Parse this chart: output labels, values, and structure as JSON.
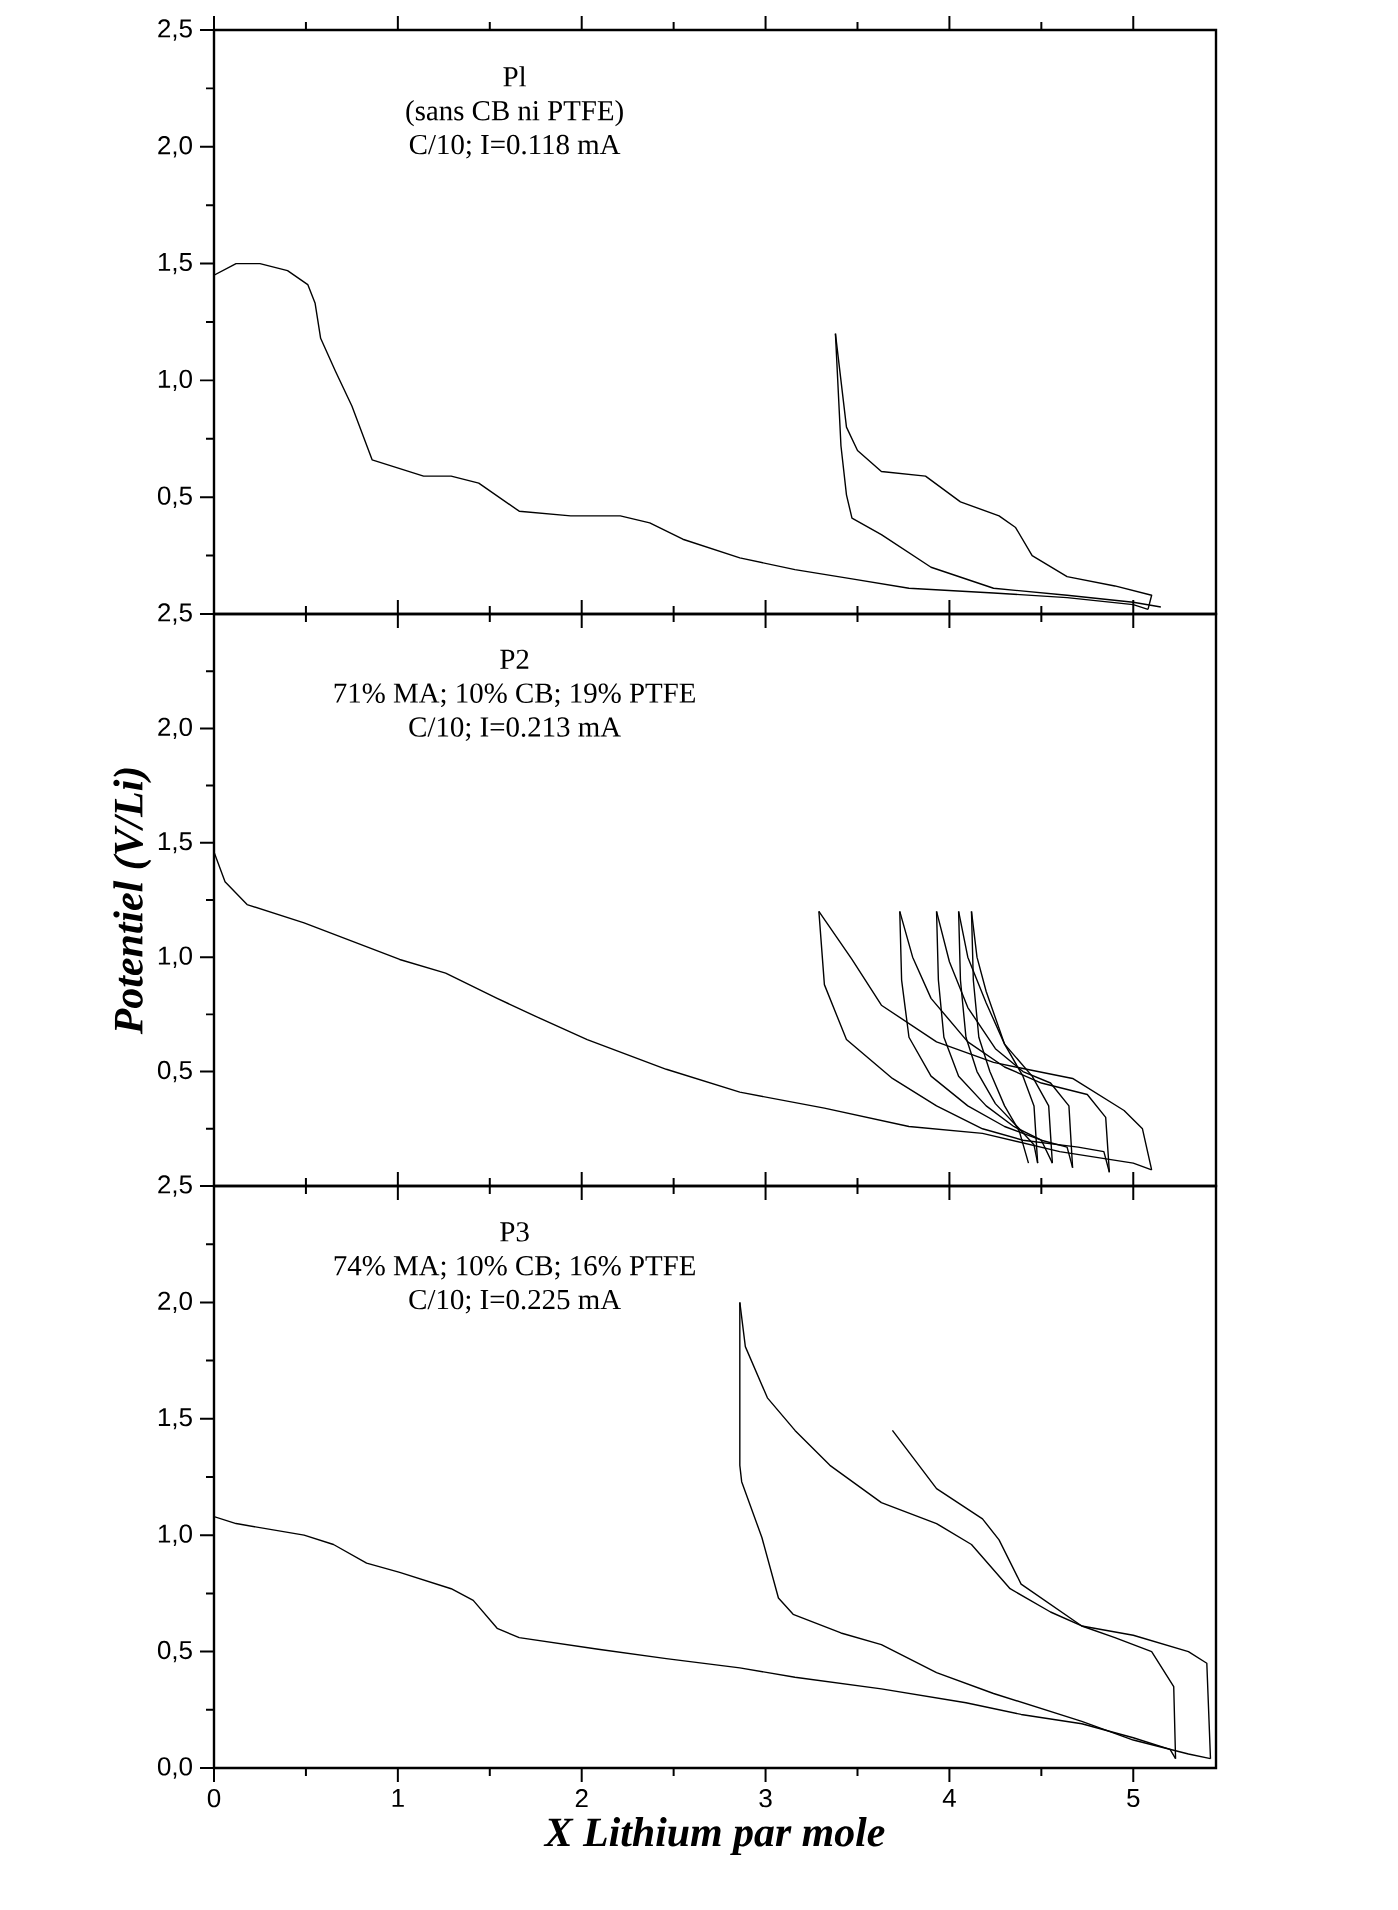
{
  "chart_data": [
    {
      "type": "line",
      "xlim": [
        0,
        5.45
      ],
      "ylim": [
        0,
        2.5
      ],
      "xticks": [
        0,
        1,
        2,
        3,
        4,
        5
      ],
      "yticks": [
        {
          "value": 0,
          "label": null
        },
        {
          "value": 0.5,
          "label": "0,5"
        },
        {
          "value": 1.0,
          "label": "1,0"
        },
        {
          "value": 1.5,
          "label": "1,5"
        },
        {
          "value": 2.0,
          "label": "2,0"
        },
        {
          "value": 2.5,
          "label": "2,5"
        }
      ],
      "tick_labels": "y",
      "annotations": [
        "Pl",
        "(sans CB ni PTFE)",
        "C/10; I=0.118 mA"
      ],
      "series": [
        {
          "color": "#000000",
          "x": [
            0,
            0.12,
            0.25,
            0.4,
            0.51,
            0.55,
            0.58,
            0.66,
            0.75,
            0.86,
            1.14,
            1.29,
            1.44,
            1.66,
            1.94,
            2.21,
            2.37,
            2.55,
            2.86,
            3.16,
            3.47,
            3.78,
            4.24,
            4.64,
            5.0,
            5.08
          ],
          "values": [
            1.45,
            1.5,
            1.5,
            1.47,
            1.41,
            1.33,
            1.18,
            1.04,
            0.89,
            0.66,
            0.59,
            0.59,
            0.56,
            0.44,
            0.42,
            0.42,
            0.39,
            0.32,
            0.24,
            0.19,
            0.15,
            0.11,
            0.09,
            0.07,
            0.04,
            0.02
          ]
        },
        {
          "color": "#000000",
          "x": [
            5.08,
            5.1,
            4.9,
            4.64,
            4.45,
            4.36,
            4.27,
            4.06,
            3.87,
            3.63,
            3.5,
            3.44,
            3.38
          ],
          "values": [
            0.02,
            0.08,
            0.12,
            0.16,
            0.25,
            0.37,
            0.42,
            0.48,
            0.59,
            0.61,
            0.7,
            0.8,
            1.2
          ]
        },
        {
          "color": "#000000",
          "x": [
            3.38,
            3.41,
            3.44,
            3.47,
            3.63,
            3.9,
            4.24,
            4.64,
            5.0,
            5.15
          ],
          "values": [
            1.2,
            0.72,
            0.51,
            0.41,
            0.34,
            0.2,
            0.11,
            0.08,
            0.05,
            0.03
          ]
        }
      ]
    },
    {
      "type": "line",
      "xlim": [
        0,
        5.45
      ],
      "ylim": [
        0,
        2.5
      ],
      "xticks": [
        0,
        1,
        2,
        3,
        4,
        5
      ],
      "yticks": [
        {
          "value": 0,
          "label": null
        },
        {
          "value": 0.5,
          "label": "0,5"
        },
        {
          "value": 1.0,
          "label": "1,0"
        },
        {
          "value": 1.5,
          "label": "1,5"
        },
        {
          "value": 2.0,
          "label": "2,0"
        },
        {
          "value": 2.5,
          "label": "2,5"
        }
      ],
      "tick_labels": "y",
      "ylabel": "Potentiel (V/Li)",
      "annotations": [
        "P2",
        "71% MA; 10% CB; 19% PTFE",
        "C/10; I=0.213 mA"
      ],
      "series": [
        {
          "color": "#000000",
          "x": [
            0,
            0.06,
            0.18,
            0.49,
            1.01,
            1.26,
            1.54,
            1.78,
            2.03,
            2.46,
            2.86,
            3.32,
            3.78,
            4.18,
            4.6,
            5.0,
            5.1
          ],
          "values": [
            1.46,
            1.33,
            1.23,
            1.15,
            0.99,
            0.93,
            0.82,
            0.73,
            0.64,
            0.51,
            0.41,
            0.34,
            0.26,
            0.23,
            0.15,
            0.1,
            0.07
          ]
        },
        {
          "color": "#000000",
          "x": [
            5.1,
            5.05,
            4.95,
            4.67,
            4.42,
            4.24,
            3.93,
            3.63,
            3.47,
            3.29
          ],
          "values": [
            0.07,
            0.25,
            0.33,
            0.47,
            0.51,
            0.54,
            0.63,
            0.79,
            0.99,
            1.2
          ]
        },
        {
          "color": "#000000",
          "x": [
            3.29,
            3.32,
            3.44,
            3.69,
            3.93,
            4.18,
            4.4,
            4.7,
            4.84,
            4.87
          ],
          "values": [
            1.2,
            0.88,
            0.64,
            0.47,
            0.35,
            0.25,
            0.2,
            0.17,
            0.15,
            0.06
          ]
        },
        {
          "color": "#000000",
          "x": [
            4.87,
            4.85,
            4.75,
            4.5,
            4.3,
            4.1,
            3.9,
            3.8,
            3.73
          ],
          "values": [
            0.06,
            0.3,
            0.4,
            0.45,
            0.52,
            0.63,
            0.82,
            1.0,
            1.2
          ]
        },
        {
          "color": "#000000",
          "x": [
            3.73,
            3.74,
            3.78,
            3.9,
            4.1,
            4.3,
            4.5,
            4.64,
            4.67
          ],
          "values": [
            1.2,
            0.9,
            0.65,
            0.48,
            0.35,
            0.26,
            0.2,
            0.17,
            0.08
          ]
        },
        {
          "color": "#000000",
          "x": [
            4.67,
            4.65,
            4.55,
            4.4,
            4.25,
            4.1,
            4.0,
            3.93
          ],
          "values": [
            0.08,
            0.35,
            0.45,
            0.5,
            0.6,
            0.78,
            0.98,
            1.2
          ]
        },
        {
          "color": "#000000",
          "x": [
            3.93,
            3.94,
            3.97,
            4.05,
            4.2,
            4.35,
            4.5,
            4.56
          ],
          "values": [
            1.2,
            0.9,
            0.65,
            0.48,
            0.35,
            0.26,
            0.2,
            0.1
          ]
        },
        {
          "color": "#000000",
          "x": [
            4.56,
            4.54,
            4.45,
            4.3,
            4.2,
            4.1,
            4.05
          ],
          "values": [
            0.1,
            0.35,
            0.48,
            0.62,
            0.8,
            1.0,
            1.2
          ]
        },
        {
          "color": "#000000",
          "x": [
            4.05,
            4.06,
            4.09,
            4.15,
            4.25,
            4.38,
            4.46,
            4.48
          ],
          "values": [
            1.2,
            0.9,
            0.65,
            0.5,
            0.36,
            0.25,
            0.18,
            0.1
          ]
        },
        {
          "color": "#000000",
          "x": [
            4.48,
            4.46,
            4.4,
            4.3,
            4.2,
            4.15,
            4.12
          ],
          "values": [
            0.1,
            0.35,
            0.48,
            0.62,
            0.85,
            1.0,
            1.2
          ]
        },
        {
          "color": "#000000",
          "x": [
            4.12,
            4.13,
            4.16,
            4.22,
            4.3,
            4.38,
            4.43
          ],
          "values": [
            1.2,
            0.9,
            0.65,
            0.5,
            0.35,
            0.24,
            0.1
          ]
        }
      ]
    },
    {
      "type": "line",
      "xlim": [
        0,
        5.45
      ],
      "ylim": [
        0,
        2.5
      ],
      "xticks": [
        0,
        1,
        2,
        3,
        4,
        5
      ],
      "yticks": [
        {
          "value": 0,
          "label": "0,0"
        },
        {
          "value": 0.5,
          "label": "0,5"
        },
        {
          "value": 1.0,
          "label": "1,0"
        },
        {
          "value": 1.5,
          "label": "1,5"
        },
        {
          "value": 2.0,
          "label": "2,0"
        },
        {
          "value": 2.5,
          "label": "2,5"
        }
      ],
      "xlabel": "X Lithium par mole",
      "annotations": [
        "P3",
        "74% MA; 10% CB; 16% PTFE",
        "C/10; I=0.225 mA"
      ],
      "series": [
        {
          "color": "#000000",
          "x": [
            0,
            0.12,
            0.49,
            0.65,
            0.83,
            1.01,
            1.29,
            1.41,
            1.54,
            1.66,
            2.09,
            2.46,
            2.86,
            3.16,
            3.63,
            4.09,
            4.39,
            4.72,
            5.0,
            5.2,
            5.23
          ],
          "values": [
            1.08,
            1.05,
            1.0,
            0.96,
            0.88,
            0.84,
            0.77,
            0.72,
            0.6,
            0.56,
            0.51,
            0.47,
            0.43,
            0.39,
            0.34,
            0.28,
            0.23,
            0.19,
            0.13,
            0.08,
            0.04
          ]
        },
        {
          "color": "#000000",
          "x": [
            5.23,
            5.22,
            5.1,
            4.9,
            4.72,
            4.55,
            4.33,
            4.12,
            3.93,
            3.63,
            3.35,
            3.16,
            3.01,
            2.89,
            2.86
          ],
          "values": [
            0.04,
            0.35,
            0.5,
            0.56,
            0.61,
            0.67,
            0.77,
            0.96,
            1.05,
            1.14,
            1.3,
            1.45,
            1.59,
            1.81,
            2.0
          ]
        },
        {
          "color": "#000000",
          "x": [
            2.86,
            2.86,
            2.87,
            2.98,
            3.07,
            3.15,
            3.41,
            3.63,
            3.93,
            4.24,
            4.72,
            5.0,
            5.3,
            5.42
          ],
          "values": [
            2.0,
            1.3,
            1.23,
            0.99,
            0.73,
            0.66,
            0.58,
            0.53,
            0.41,
            0.32,
            0.2,
            0.12,
            0.06,
            0.04
          ]
        },
        {
          "color": "#000000",
          "x": [
            5.42,
            5.4,
            5.3,
            5.0,
            4.72,
            4.39,
            4.27,
            4.18,
            3.93,
            3.69
          ],
          "values": [
            0.04,
            0.45,
            0.5,
            0.57,
            0.61,
            0.79,
            0.98,
            1.07,
            1.2,
            1.45
          ]
        }
      ]
    }
  ]
}
